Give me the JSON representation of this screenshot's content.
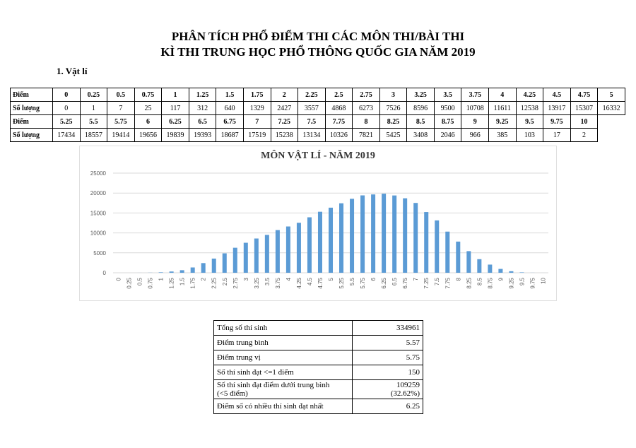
{
  "header": {
    "title_lines": [
      "PHÂN TÍCH PHỔ ĐIỂM THI CÁC MÔN THI/BÀI THI",
      "KÌ THI TRUNG HỌC PHỔ THÔNG QUỐC GIA NĂM 2019"
    ],
    "section": "1.  Vật lí"
  },
  "table": {
    "row_labels": [
      "Điểm",
      "Số lượng"
    ]
  },
  "chart_data": {
    "type": "bar",
    "title": "MÔN VẬT LÍ - NĂM 2019",
    "categories": [
      "0",
      "0.25",
      "0.5",
      "0.75",
      "1",
      "1.25",
      "1.5",
      "1.75",
      "2",
      "2.25",
      "2.5",
      "2.75",
      "3",
      "3.25",
      "3.5",
      "3.75",
      "4",
      "4.25",
      "4.5",
      "4.75",
      "5",
      "5.25",
      "5.5",
      "5.75",
      "6",
      "6.25",
      "6.5",
      "6.75",
      "7",
      "7.25",
      "7.5",
      "7.75",
      "8",
      "8.25",
      "8.5",
      "8.75",
      "9",
      "9.25",
      "9.5",
      "9.75",
      "10"
    ],
    "values": [
      0,
      1,
      7,
      25,
      117,
      312,
      640,
      1329,
      2427,
      3557,
      4868,
      6273,
      7526,
      8596,
      9500,
      10708,
      11611,
      12538,
      13917,
      15307,
      16332,
      17434,
      18557,
      19414,
      19656,
      19839,
      19393,
      18687,
      17519,
      15238,
      13134,
      10326,
      7821,
      5425,
      3408,
      2046,
      966,
      385,
      103,
      17,
      2
    ],
    "color": "#5b9bd5",
    "ylim": [
      0,
      25000
    ],
    "yticks": [
      0,
      5000,
      10000,
      15000,
      20000,
      25000
    ],
    "grid": true
  },
  "summary": {
    "rows": [
      [
        [
          "Tổng số thí sinh"
        ],
        [
          "334961"
        ]
      ],
      [
        [
          "Điểm trung bình"
        ],
        [
          "5.57"
        ]
      ],
      [
        [
          "Điểm trung vị"
        ],
        [
          "5.75"
        ]
      ],
      [
        [
          "Số thí sinh đạt <=1 điểm"
        ],
        [
          "150"
        ]
      ],
      [
        [
          "Số thí sinh đạt điểm dưới trung bình",
          "(<5 điểm)"
        ],
        [
          "109259",
          "(32.62%)"
        ]
      ],
      [
        [
          "Điểm số có nhiều thí sinh đạt nhất"
        ],
        [
          "6.25"
        ]
      ]
    ]
  }
}
